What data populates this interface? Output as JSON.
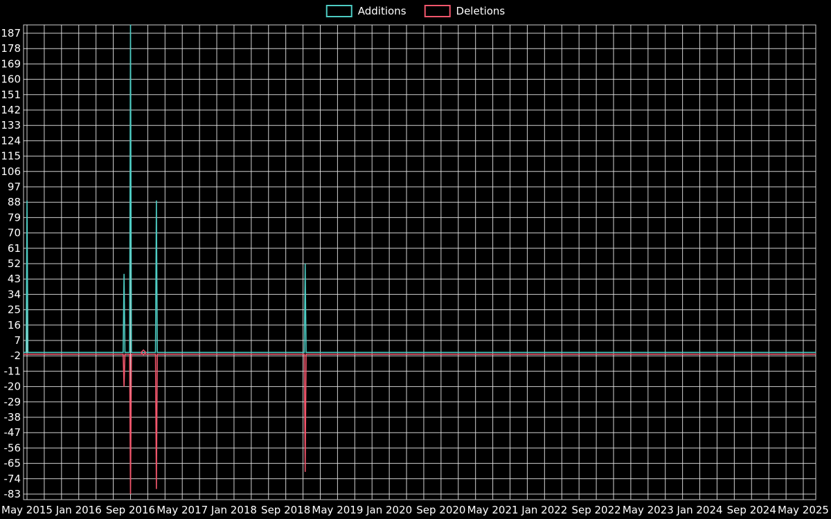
{
  "legend": {
    "items": [
      {
        "label": "Additions",
        "color": "#4ecdc4"
      },
      {
        "label": "Deletions",
        "color": "#f2566c"
      }
    ]
  },
  "chart_data": {
    "type": "line",
    "title": "",
    "xlabel": "",
    "ylabel": "",
    "background_color": "#000000",
    "grid": true,
    "grid_color": "#e8e8e8",
    "text_color": "#ffffff",
    "legend_position": "top-center",
    "x_range": {
      "start": "May 2015",
      "end": "May 2025",
      "total_months": 120
    },
    "x_tick_labels": [
      "May 2015",
      "Jan 2016",
      "Sep 2016",
      "May 2017",
      "Jan 2018",
      "Sep 2018",
      "May 2019",
      "Jan 2020",
      "Sep 2020",
      "May 2021",
      "Jan 2022",
      "Sep 2022",
      "May 2023",
      "Jan 2024",
      "Sep 2024",
      "May 2025"
    ],
    "x_tick_month_step": 8,
    "y_ticks": [
      187,
      178,
      169,
      160,
      151,
      142,
      133,
      124,
      115,
      106,
      97,
      88,
      79,
      70,
      61,
      52,
      43,
      34,
      25,
      16,
      7,
      -2,
      -11,
      -20,
      -29,
      -38,
      -47,
      -56,
      -65,
      -74,
      -83
    ],
    "ylim": [
      -87.5,
      192.5
    ],
    "baseline_value": 0,
    "series": [
      {
        "name": "Additions",
        "color": "#4ecdc4",
        "baseline": 0,
        "spikes": [
          {
            "date": "May 2015",
            "month_index": 0,
            "value": 89
          },
          {
            "date": "Aug 2016",
            "month_index": 15,
            "value": 46
          },
          {
            "date": "Sep 2016",
            "month_index": 16,
            "value": 192
          },
          {
            "date": "Jan 2017",
            "month_index": 20,
            "value": 89
          },
          {
            "date": "Dec 2018",
            "month_index": 43,
            "value": 52
          }
        ],
        "markers": []
      },
      {
        "name": "Deletions",
        "color": "#f2566c",
        "baseline": 0,
        "spikes": [
          {
            "date": "Aug 2016",
            "month_index": 15,
            "value": -20
          },
          {
            "date": "Sep 2016",
            "month_index": 16,
            "value": -83
          },
          {
            "date": "Jan 2017",
            "month_index": 20,
            "value": -80
          },
          {
            "date": "Dec 2018",
            "month_index": 43,
            "value": -70
          }
        ],
        "markers": [
          {
            "date": "Nov 2016",
            "month_index": 18,
            "value": 0
          }
        ]
      }
    ]
  }
}
